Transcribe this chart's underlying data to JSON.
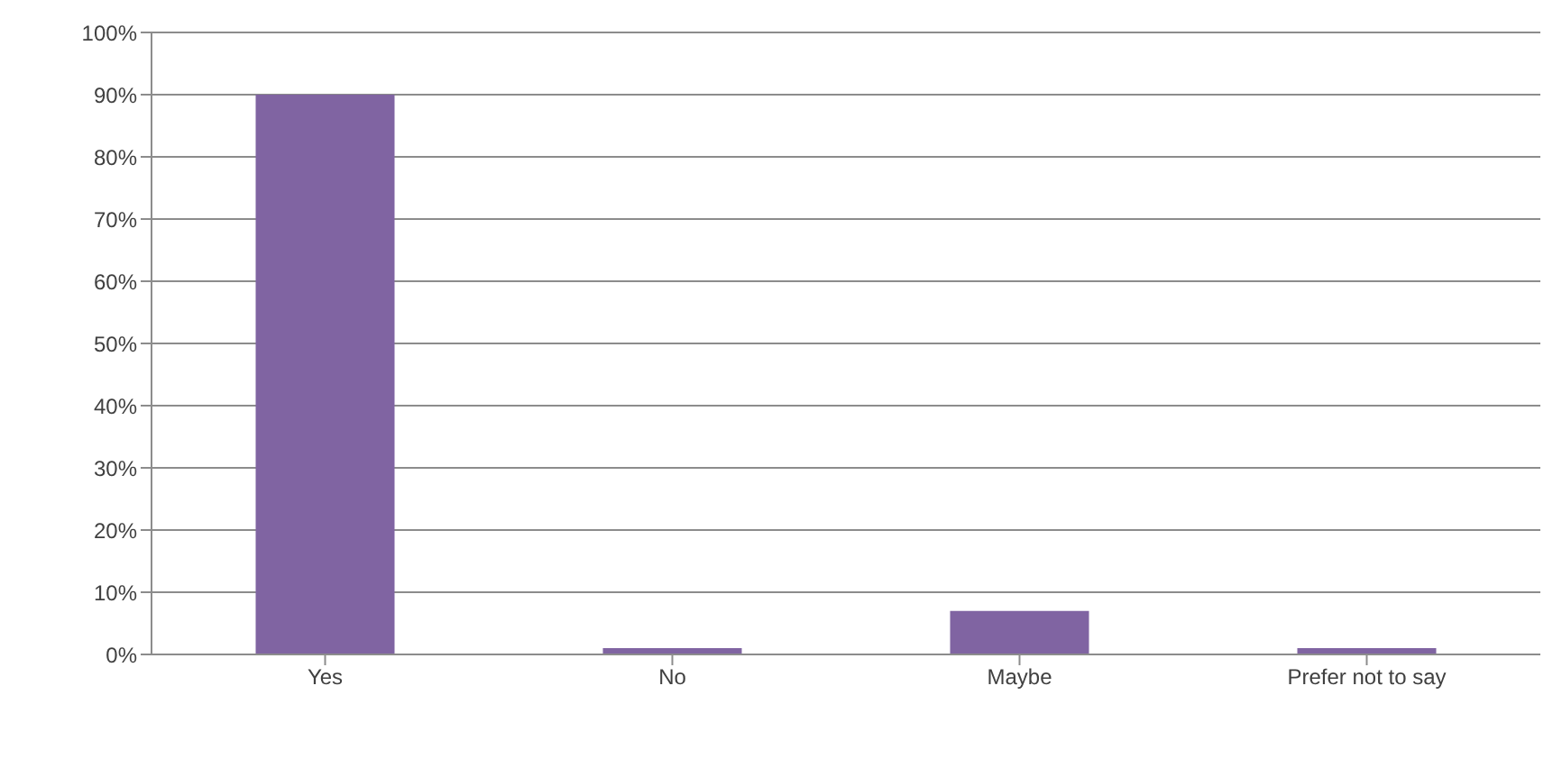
{
  "chart_data": {
    "type": "bar",
    "categories": [
      "Yes",
      "No",
      "Maybe",
      "Prefer not to say"
    ],
    "values": [
      90,
      1,
      7,
      1
    ],
    "color": "#8064a2",
    "ylim": [
      0,
      100
    ],
    "yticks": [
      {
        "value": 0,
        "label": "0%"
      },
      {
        "value": 10,
        "label": "10%"
      },
      {
        "value": 20,
        "label": "20%"
      },
      {
        "value": 30,
        "label": "30%"
      },
      {
        "value": 40,
        "label": "40%"
      },
      {
        "value": 50,
        "label": "50%"
      },
      {
        "value": 60,
        "label": "60%"
      },
      {
        "value": 70,
        "label": "70%"
      },
      {
        "value": 80,
        "label": "80%"
      },
      {
        "value": 90,
        "label": "90%"
      },
      {
        "value": 100,
        "label": "100%"
      }
    ],
    "grid": "y",
    "legend": false
  }
}
